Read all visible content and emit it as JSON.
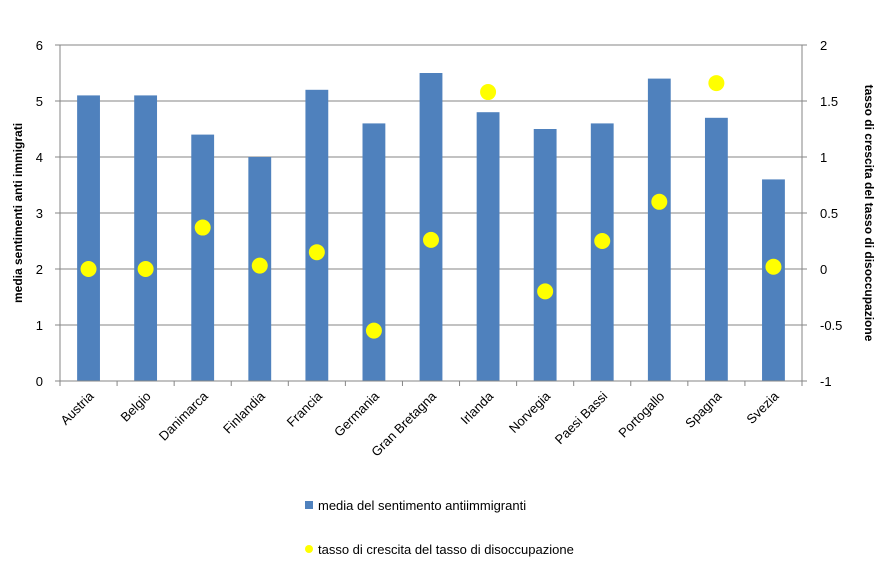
{
  "chart_data": {
    "type": "bar",
    "categories": [
      "Austria",
      "Belgio",
      "Danimarca",
      "Finlandia",
      "Francia",
      "Germania",
      "Gran Bretagna",
      "Irlanda",
      "Norvegia",
      "Paesi Bassi",
      "Portogallo",
      "Spagna",
      "Svezia"
    ],
    "series": [
      {
        "name": "media del sentimento antiimmigranti",
        "kind": "bar",
        "axis": "left",
        "color": "#4F81BD",
        "values": [
          5.1,
          5.1,
          4.4,
          4.0,
          5.2,
          4.6,
          5.5,
          4.8,
          4.5,
          4.6,
          5.4,
          4.7,
          3.6
        ]
      },
      {
        "name": "tasso di crescita del tasso di disoccupazione",
        "kind": "scatter",
        "axis": "right",
        "color": "#FFFF00",
        "values": [
          0.0,
          0.0,
          0.37,
          0.03,
          0.15,
          -0.55,
          0.26,
          1.58,
          -0.2,
          0.25,
          0.6,
          1.66,
          0.02
        ]
      }
    ],
    "ylabel": "media sentimenti anti immigrati",
    "y2label": "tasso di crescita del tasso di disoccupazione",
    "ylim": [
      0,
      6
    ],
    "y2lim": [
      -1,
      2
    ],
    "yticks": [
      "0",
      "1",
      "2",
      "3",
      "4",
      "5",
      "6"
    ],
    "y2ticks": [
      "-1",
      "-0.5",
      "0",
      "0.5",
      "1",
      "1.5",
      "2"
    ],
    "grid": true,
    "legend_position": "bottom"
  }
}
